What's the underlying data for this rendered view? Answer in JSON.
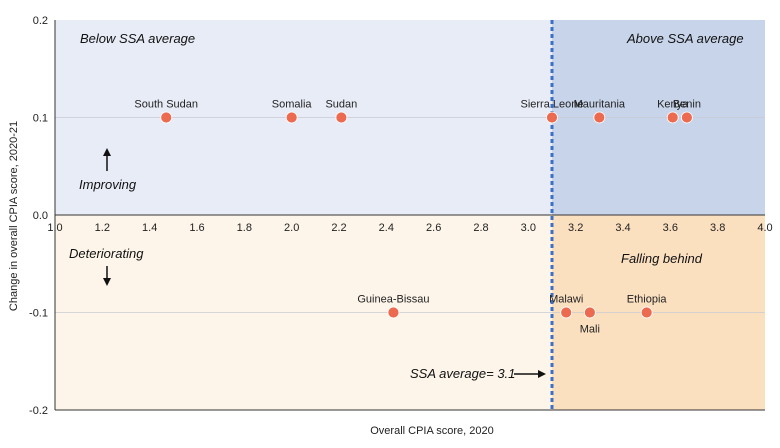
{
  "chart_data": {
    "type": "scatter",
    "xlabel": "Overall CPIA score, 2020",
    "ylabel": "Change in overall CPIA score, 2020-21",
    "xlim": [
      1.0,
      4.0
    ],
    "ylim": [
      -0.2,
      0.2
    ],
    "x_ticks": [
      "1.0",
      "1.2",
      "1.4",
      "1.6",
      "1.8",
      "2.0",
      "2.2",
      "2.4",
      "2.6",
      "2.8",
      "3.0",
      "3.2",
      "3.4",
      "3.6",
      "3.8",
      "4.0"
    ],
    "y_ticks": [
      "-0.2",
      "-0.1",
      "0.0",
      "0.1",
      "0.2"
    ],
    "ssa_average": 3.1,
    "points": [
      {
        "label": "South Sudan",
        "x": 1.47,
        "y": 0.1
      },
      {
        "label": "Somalia",
        "x": 2.0,
        "y": 0.1
      },
      {
        "label": "Sudan",
        "x": 2.21,
        "y": 0.1
      },
      {
        "label": "Sierra Leone",
        "x": 3.1,
        "y": 0.1
      },
      {
        "label": "Mauritania",
        "x": 3.3,
        "y": 0.1
      },
      {
        "label": "Kenya",
        "x": 3.61,
        "y": 0.1
      },
      {
        "label": "Benin",
        "x": 3.67,
        "y": 0.1
      },
      {
        "label": "Guinea-Bissau",
        "x": 2.43,
        "y": -0.1
      },
      {
        "label": "Malawi",
        "x": 3.16,
        "y": -0.1
      },
      {
        "label": "Mali",
        "x": 3.26,
        "y": -0.1
      },
      {
        "label": "Ethiopia",
        "x": 3.5,
        "y": -0.1
      }
    ],
    "quadrant_labels": {
      "top_left": "Below SSA average",
      "top_right": "Above SSA average",
      "bottom_right": "Falling behind"
    },
    "annotations": {
      "improving": "Improving",
      "deteriorating": "Deteriorating",
      "ssa_average_label": "SSA average= 3.1"
    },
    "colors": {
      "point": "#ec6a4f",
      "q_top_left": "#e8ecf7",
      "q_top_right": "#c7d4ea",
      "q_bottom_left": "#fdf5ea",
      "q_bottom_right": "#fbe0c0",
      "avg_line": "#3d6fc7"
    }
  }
}
